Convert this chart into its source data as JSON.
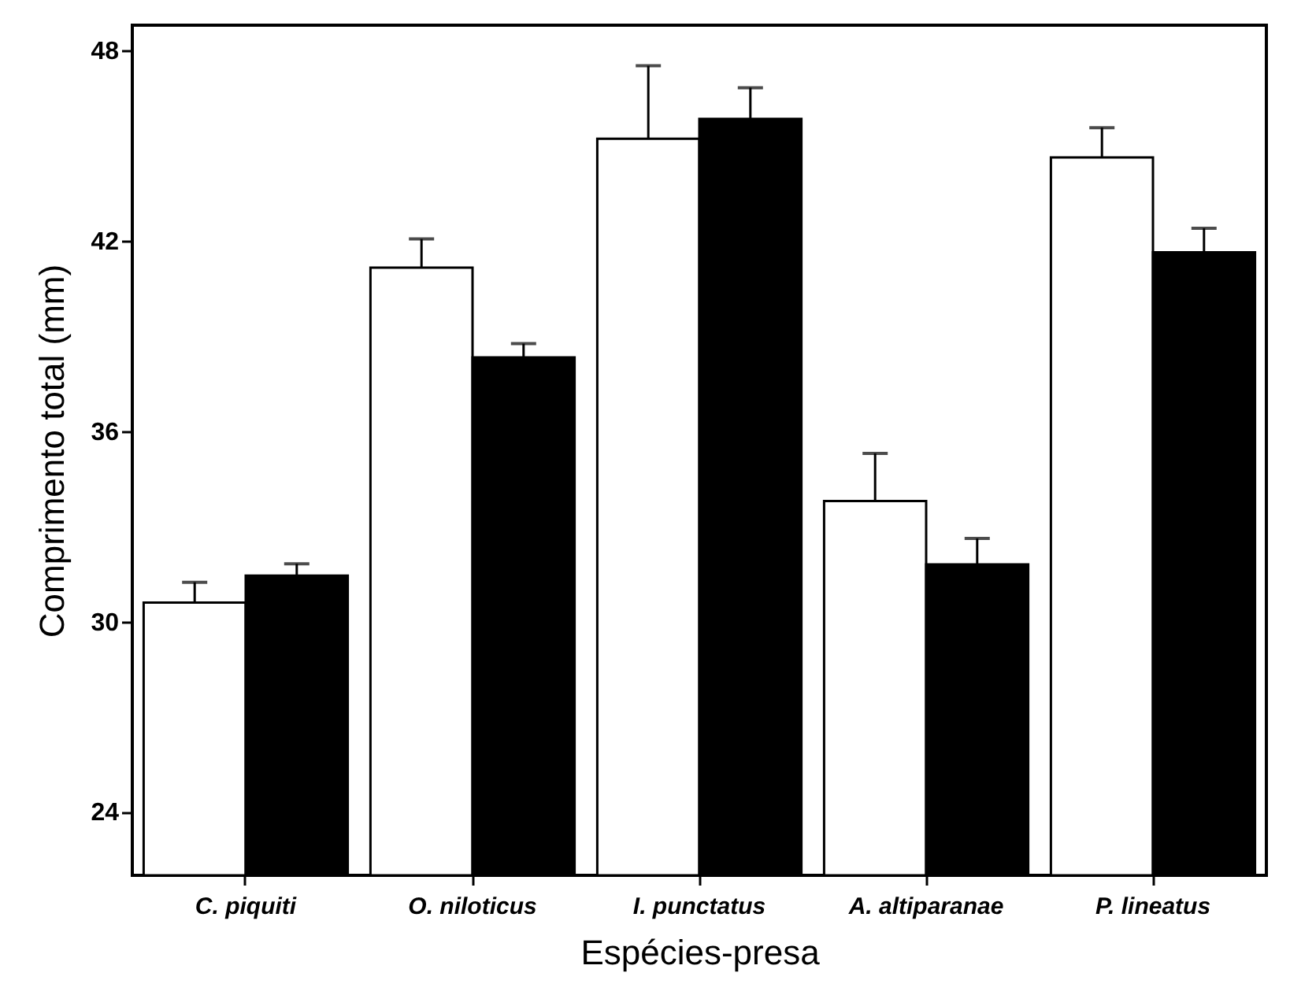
{
  "chart_data": {
    "type": "bar",
    "xlabel": "Espécies-presa",
    "ylabel": "Comprimento total (mm)",
    "categories": [
      "C. piquiti",
      "O. niloticus",
      "I. punctatus",
      "A. altiparanae",
      "P. lineatus"
    ],
    "series": [
      {
        "color": "#ffffff",
        "values": [
          30.6,
          41.16,
          45.22,
          33.8,
          44.63
        ],
        "errors": [
          [
            30.6,
            31.24
          ],
          [
            41.16,
            42.06
          ],
          [
            45.22,
            47.52
          ],
          [
            33.8,
            35.3
          ],
          [
            44.63,
            45.57
          ]
        ]
      },
      {
        "color": "#000000",
        "values": [
          31.45,
          38.33,
          45.85,
          31.8,
          41.64
        ],
        "errors": [
          [
            31.45,
            31.82
          ],
          [
            38.33,
            38.76
          ],
          [
            45.85,
            46.83
          ],
          [
            31.8,
            32.62
          ],
          [
            41.64,
            42.4
          ]
        ]
      }
    ],
    "ylim": [
      22,
      48.8
    ],
    "yticks": [
      24,
      30,
      36,
      42,
      48
    ]
  }
}
